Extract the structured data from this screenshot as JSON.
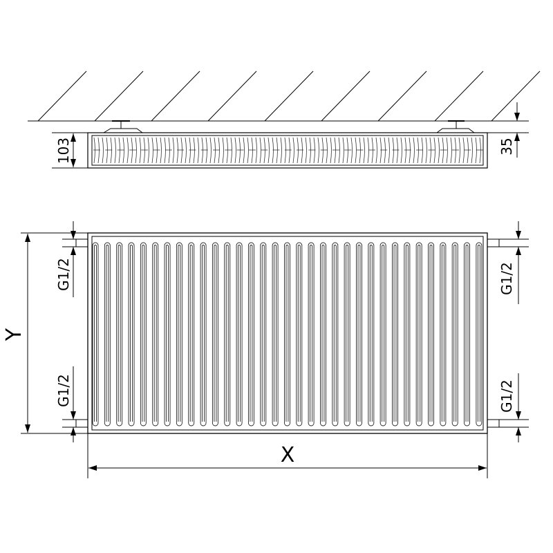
{
  "dimensions": {
    "depth": "103",
    "wall_gap": "35",
    "height": "Y",
    "width": "X",
    "connection_top_left": "G1/2",
    "connection_bottom_left": "G1/2",
    "connection_top_right": "G1/2",
    "connection_bottom_right": "G1/2"
  },
  "colors": {
    "line": "#000000",
    "detail": "#444444"
  }
}
